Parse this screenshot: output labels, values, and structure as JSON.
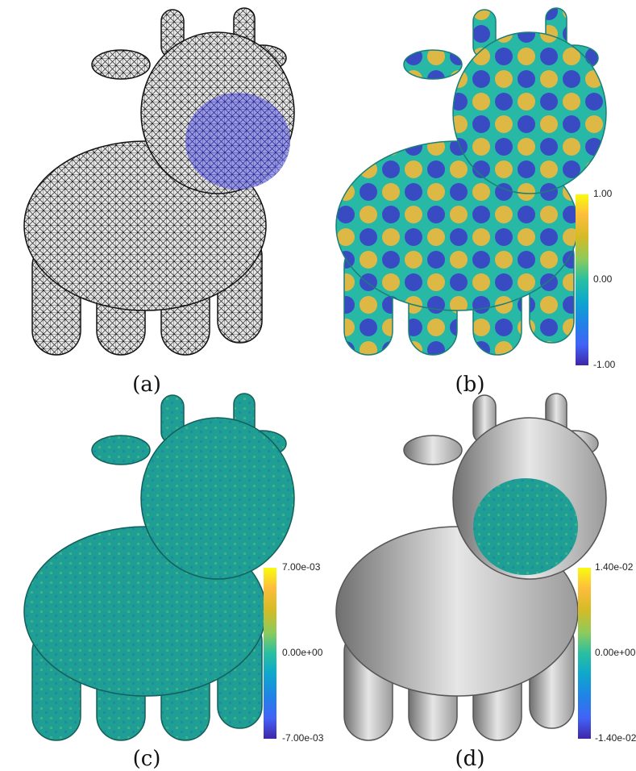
{
  "figure": {
    "panels": [
      {
        "id": "a",
        "caption": "(a)",
        "render": "wireframe mesh with highlighted snout region"
      },
      {
        "id": "b",
        "caption": "(b)",
        "colorbar": {
          "top": "1.00",
          "mid": "0.00",
          "bottom": "-1.00"
        }
      },
      {
        "id": "c",
        "caption": "(c)",
        "colorbar": {
          "top": "7.00e-03",
          "mid": "0.00e+00",
          "bottom": "-7.00e-03"
        }
      },
      {
        "id": "d",
        "caption": "(d)",
        "colorbar": {
          "top": "1.40e-02",
          "mid": "0.00e+00",
          "bottom": "-1.40e-02"
        }
      }
    ]
  },
  "colors": {
    "colormap_top": "#f9fb0e",
    "colormap_mid": "#29bfa1",
    "colormap_bottom": "#3e26a8",
    "highlight": "#4a4ad8",
    "mesh": "#1a1a1a"
  }
}
